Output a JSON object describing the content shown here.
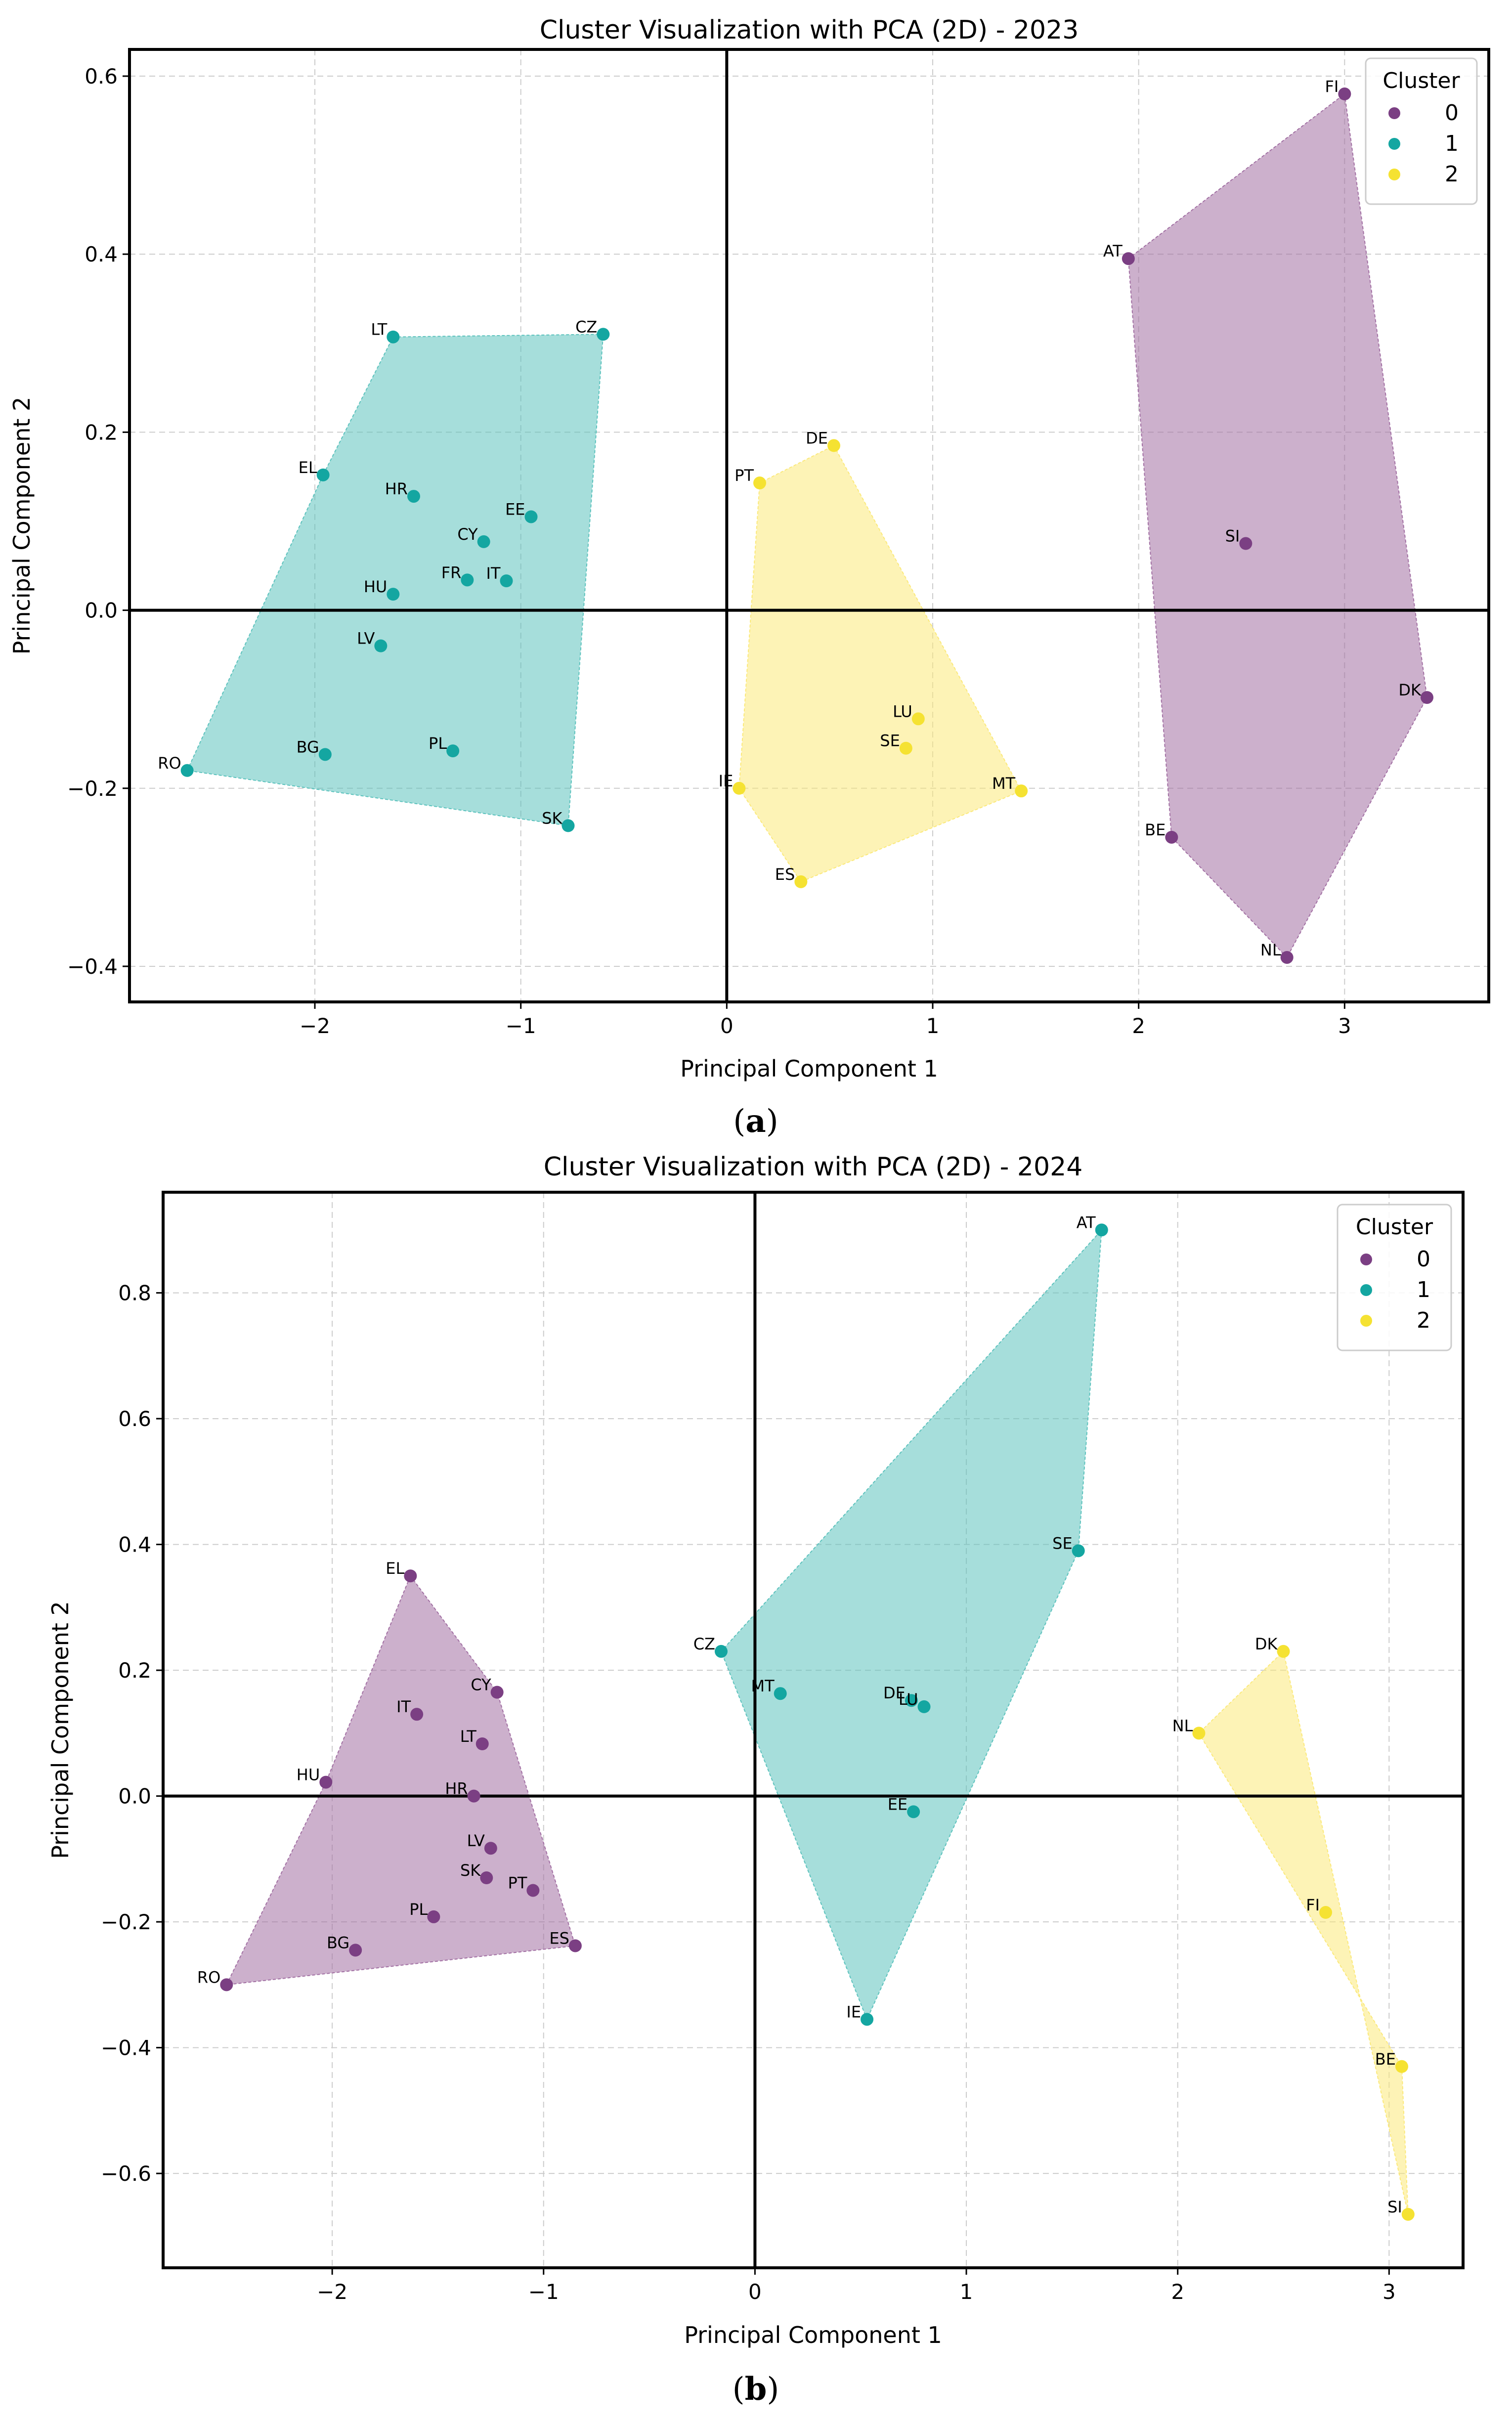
{
  "chart_data": [
    {
      "type": "scatter",
      "title": "Cluster Visualization with PCA (2D) - 2023",
      "xlabel": "Principal Component 1",
      "ylabel": "Principal Component 2",
      "caption": "a",
      "xlim": [
        -2.9,
        3.7
      ],
      "ylim": [
        -0.44,
        0.63
      ],
      "xticks": [
        -2,
        -1,
        0,
        1,
        2,
        3
      ],
      "xtick_labels": [
        "−2",
        "−1",
        "0",
        "1",
        "2",
        "3"
      ],
      "yticks": [
        -0.4,
        -0.2,
        0.0,
        0.2,
        0.4,
        0.6
      ],
      "ytick_labels": [
        "−0.4",
        "−0.2",
        "0.0",
        "0.2",
        "0.4",
        "0.6"
      ],
      "grid": true,
      "legend": {
        "title": "Cluster",
        "position": "top-right",
        "entries": [
          "0",
          "1",
          "2"
        ]
      },
      "colors": [
        "#7b3f83",
        "#14a6a1",
        "#f5e232"
      ],
      "hull_colors": [
        "#a270a3",
        "#5cc2bd",
        "#fbe97a"
      ],
      "clusters": [
        {
          "name": "0",
          "hull": [
            "FI",
            "DK",
            "NL",
            "BE",
            "AT"
          ],
          "points": [
            {
              "label": "FI",
              "x": 3.0,
              "y": 0.58
            },
            {
              "label": "AT",
              "x": 1.95,
              "y": 0.395
            },
            {
              "label": "SI",
              "x": 2.52,
              "y": 0.075
            },
            {
              "label": "DK",
              "x": 3.4,
              "y": -0.098
            },
            {
              "label": "BE",
              "x": 2.16,
              "y": -0.255
            },
            {
              "label": "NL",
              "x": 2.72,
              "y": -0.39
            }
          ]
        },
        {
          "name": "1",
          "hull": [
            "LT",
            "CZ",
            "SK",
            "RO",
            "EL"
          ],
          "points": [
            {
              "label": "LT",
              "x": -1.62,
              "y": 0.307
            },
            {
              "label": "CZ",
              "x": -0.6,
              "y": 0.31
            },
            {
              "label": "EL",
              "x": -1.96,
              "y": 0.152
            },
            {
              "label": "HR",
              "x": -1.52,
              "y": 0.128
            },
            {
              "label": "EE",
              "x": -0.95,
              "y": 0.105
            },
            {
              "label": "CY",
              "x": -1.18,
              "y": 0.077
            },
            {
              "label": "HU",
              "x": -1.62,
              "y": 0.018
            },
            {
              "label": "FR",
              "x": -1.26,
              "y": 0.034
            },
            {
              "label": "IT",
              "x": -1.07,
              "y": 0.033
            },
            {
              "label": "LV",
              "x": -1.68,
              "y": -0.04
            },
            {
              "label": "BG",
              "x": -1.95,
              "y": -0.162
            },
            {
              "label": "PL",
              "x": -1.33,
              "y": -0.158
            },
            {
              "label": "RO",
              "x": -2.62,
              "y": -0.18
            },
            {
              "label": "SK",
              "x": -0.77,
              "y": -0.242
            }
          ]
        },
        {
          "name": "2",
          "hull": [
            "DE",
            "MT",
            "ES",
            "IE",
            "PT"
          ],
          "points": [
            {
              "label": "DE",
              "x": 0.52,
              "y": 0.185
            },
            {
              "label": "PT",
              "x": 0.16,
              "y": 0.143
            },
            {
              "label": "LU",
              "x": 0.93,
              "y": -0.122
            },
            {
              "label": "SE",
              "x": 0.87,
              "y": -0.155
            },
            {
              "label": "MT",
              "x": 1.43,
              "y": -0.203
            },
            {
              "label": "IE",
              "x": 0.06,
              "y": -0.2
            },
            {
              "label": "ES",
              "x": 0.36,
              "y": -0.305
            }
          ]
        }
      ]
    },
    {
      "type": "scatter",
      "title": "Cluster Visualization with PCA (2D) - 2024",
      "xlabel": "Principal Component 1",
      "ylabel": "Principal Component 2",
      "caption": "b",
      "xlim": [
        -2.8,
        3.35
      ],
      "ylim": [
        -0.75,
        0.96
      ],
      "xticks": [
        -2,
        -1,
        0,
        1,
        2,
        3
      ],
      "xtick_labels": [
        "−2",
        "−1",
        "0",
        "1",
        "2",
        "3"
      ],
      "yticks": [
        -0.6,
        -0.4,
        -0.2,
        0.0,
        0.2,
        0.4,
        0.6,
        0.8
      ],
      "ytick_labels": [
        "−0.6",
        "−0.4",
        "−0.2",
        "0.0",
        "0.2",
        "0.4",
        "0.6",
        "0.8"
      ],
      "grid": true,
      "legend": {
        "title": "Cluster",
        "position": "top-right",
        "entries": [
          "0",
          "1",
          "2"
        ]
      },
      "colors": [
        "#7b3f83",
        "#14a6a1",
        "#f5e232"
      ],
      "hull_colors": [
        "#a270a3",
        "#5cc2bd",
        "#fbe97a"
      ],
      "clusters": [
        {
          "name": "0",
          "hull": [
            "EL",
            "CY",
            "ES",
            "RO",
            "HU"
          ],
          "points": [
            {
              "label": "EL",
              "x": -1.63,
              "y": 0.35
            },
            {
              "label": "CY",
              "x": -1.22,
              "y": 0.165
            },
            {
              "label": "IT",
              "x": -1.6,
              "y": 0.13
            },
            {
              "label": "LT",
              "x": -1.29,
              "y": 0.083
            },
            {
              "label": "HU",
              "x": -2.03,
              "y": 0.022
            },
            {
              "label": "HR",
              "x": -1.33,
              "y": 0.0
            },
            {
              "label": "LV",
              "x": -1.25,
              "y": -0.083
            },
            {
              "label": "SK",
              "x": -1.27,
              "y": -0.13
            },
            {
              "label": "PT",
              "x": -1.05,
              "y": -0.15
            },
            {
              "label": "PL",
              "x": -1.52,
              "y": -0.192
            },
            {
              "label": "BG",
              "x": -1.89,
              "y": -0.245
            },
            {
              "label": "ES",
              "x": -0.85,
              "y": -0.238
            },
            {
              "label": "RO",
              "x": -2.5,
              "y": -0.3
            }
          ]
        },
        {
          "name": "1",
          "hull": [
            "AT",
            "SE",
            "IE",
            "CZ"
          ],
          "points": [
            {
              "label": "AT",
              "x": 1.64,
              "y": 0.9
            },
            {
              "label": "SE",
              "x": 1.53,
              "y": 0.39
            },
            {
              "label": "CZ",
              "x": -0.16,
              "y": 0.23
            },
            {
              "label": "MT",
              "x": 0.12,
              "y": 0.163
            },
            {
              "label": "DE",
              "x": 0.74,
              "y": 0.152
            },
            {
              "label": "LU",
              "x": 0.8,
              "y": 0.142
            },
            {
              "label": "EE",
              "x": 0.75,
              "y": -0.025
            },
            {
              "label": "IE",
              "x": 0.53,
              "y": -0.355
            }
          ]
        },
        {
          "name": "2",
          "hull": [
            "DK",
            "SI",
            "BE",
            "NL"
          ],
          "points": [
            {
              "label": "DK",
              "x": 2.5,
              "y": 0.23
            },
            {
              "label": "NL",
              "x": 2.1,
              "y": 0.1
            },
            {
              "label": "FI",
              "x": 2.7,
              "y": -0.185
            },
            {
              "label": "BE",
              "x": 3.06,
              "y": -0.43
            },
            {
              "label": "SI",
              "x": 3.09,
              "y": -0.665
            }
          ]
        }
      ]
    }
  ]
}
